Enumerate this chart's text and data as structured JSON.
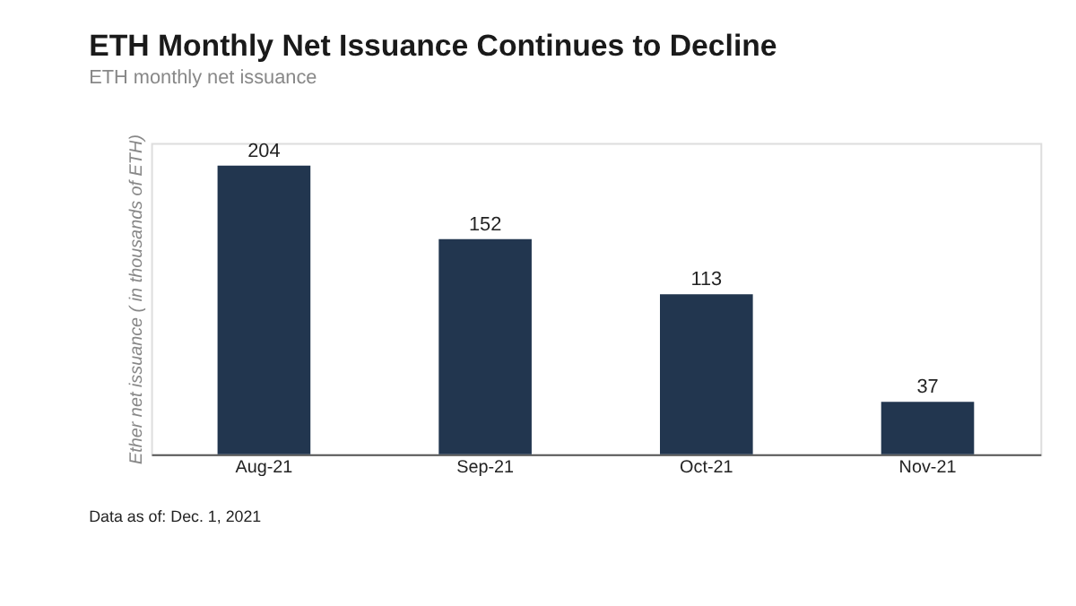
{
  "chart_data": {
    "type": "bar",
    "title": "ETH Monthly Net Issuance Continues to Decline",
    "subtitle": "ETH monthly net issuance",
    "ylabel": "Ether net issuance ( in thousands of ETH)",
    "categories": [
      "Aug-21",
      "Sep-21",
      "Oct-21",
      "Nov-21"
    ],
    "values": [
      204,
      152,
      113,
      37
    ],
    "color": "#22364f",
    "data_labels": true,
    "tick_labels": "x",
    "grid": false,
    "annotations": [
      "Data as of: Dec. 1, 2021"
    ]
  }
}
